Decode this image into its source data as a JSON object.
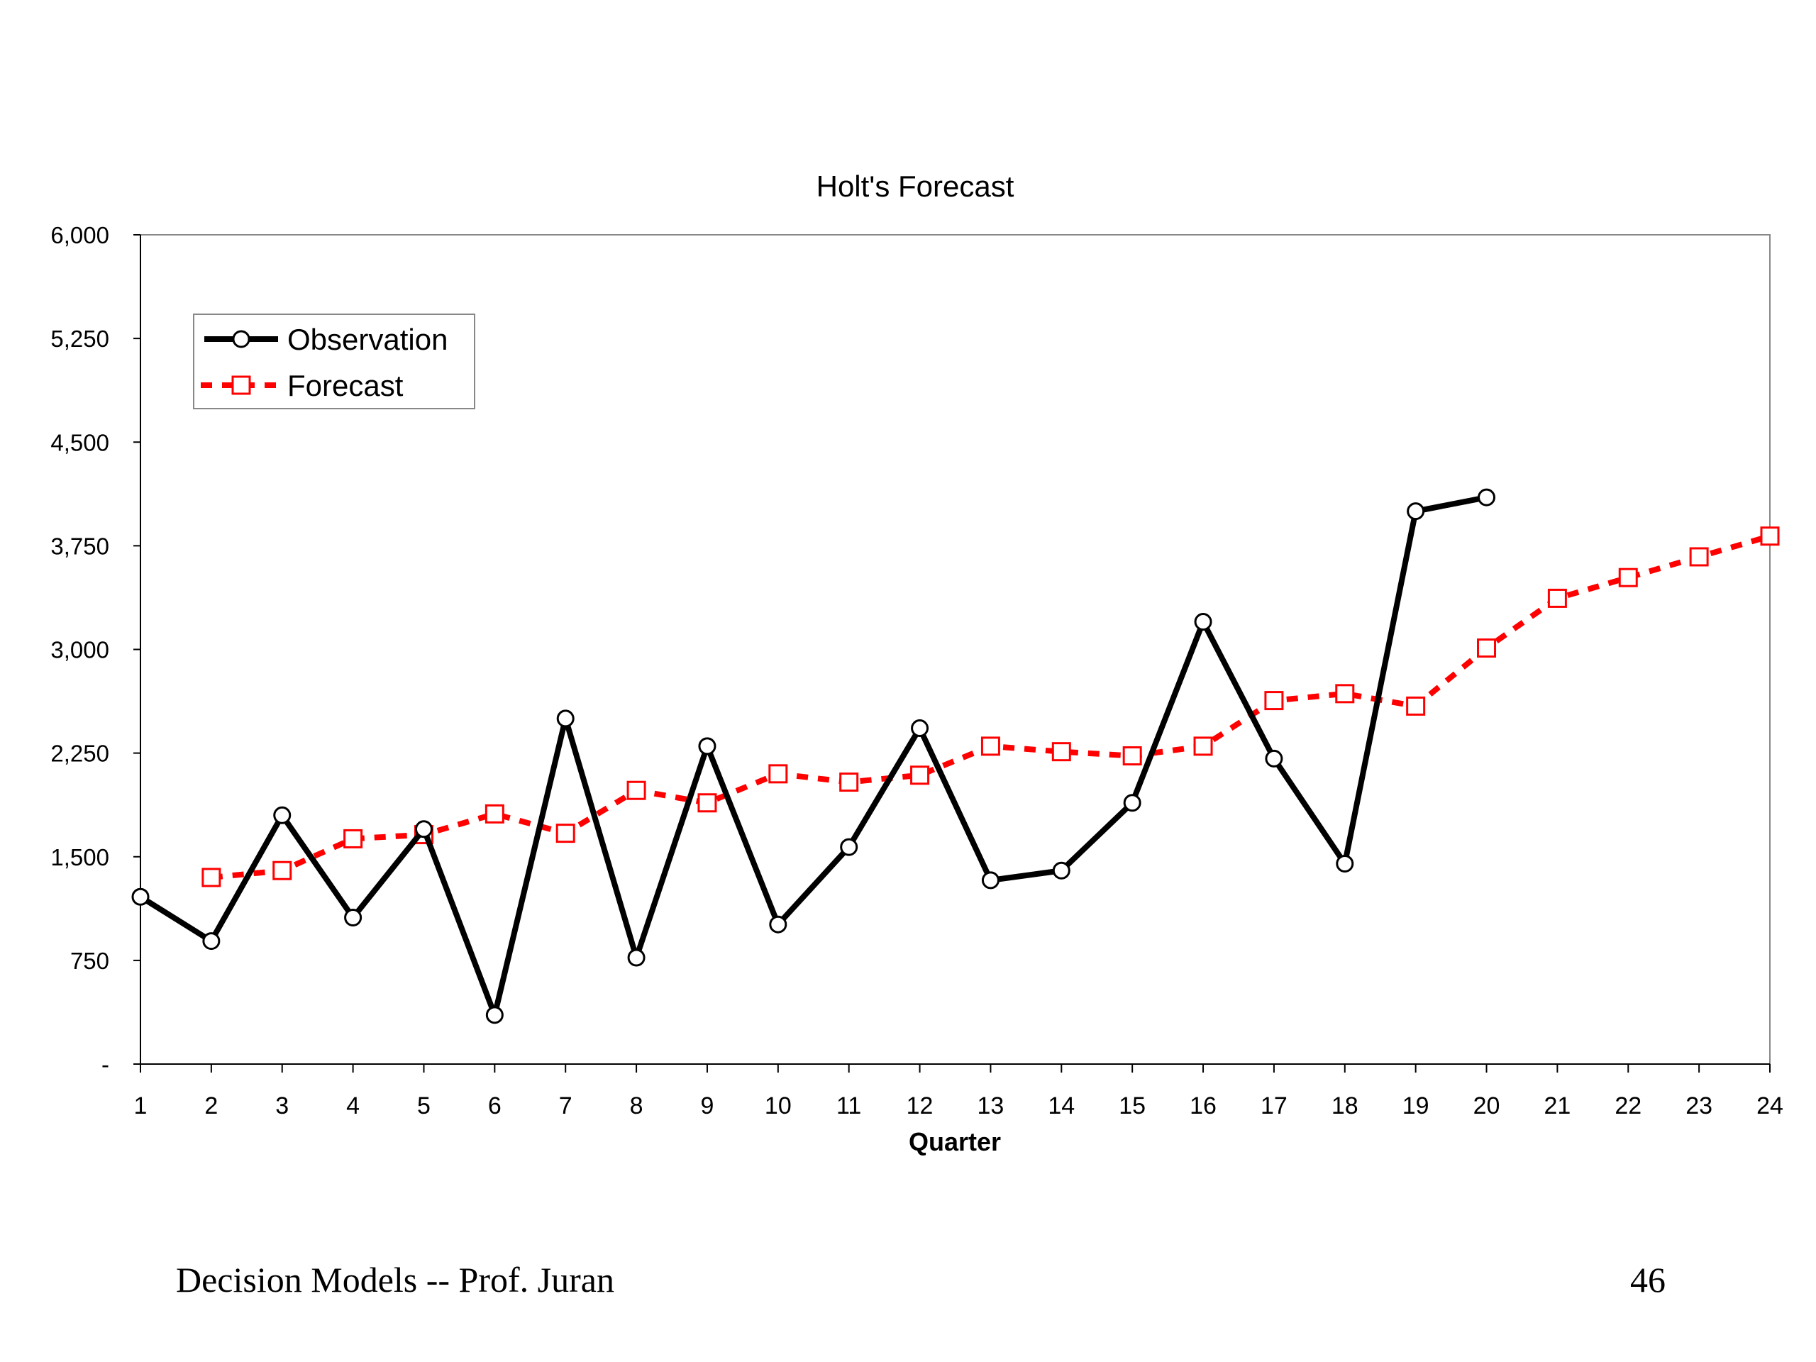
{
  "slide": {
    "footer_left": "Decision Models  --   Prof. Juran",
    "page_number": "46"
  },
  "chart_data": {
    "type": "line",
    "title": "Holt's Forecast",
    "xlabel": "Quarter",
    "ylabel": "",
    "x": [
      1,
      2,
      3,
      4,
      5,
      6,
      7,
      8,
      9,
      10,
      11,
      12,
      13,
      14,
      15,
      16,
      17,
      18,
      19,
      20,
      21,
      22,
      23,
      24
    ],
    "ylim": [
      0,
      6000
    ],
    "yticks": [
      0,
      750,
      1500,
      2250,
      3000,
      3750,
      4500,
      5250,
      6000
    ],
    "ytick_labels": [
      "-",
      "750",
      "1,500",
      "2,250",
      "3,000",
      "3,750",
      "4,500",
      "5,250",
      "6,000"
    ],
    "grid": false,
    "legend_position": "top-left",
    "series": [
      {
        "name": "Observation",
        "color": "#000000",
        "style": "solid",
        "marker": "circle",
        "values": [
          1210,
          890,
          1800,
          1060,
          1700,
          355,
          2500,
          770,
          2300,
          1010,
          1570,
          2430,
          1330,
          1400,
          1890,
          3200,
          2210,
          1450,
          4000,
          4100,
          null,
          null,
          null,
          null
        ]
      },
      {
        "name": "Forecast",
        "color": "#ff0000",
        "style": "dashed",
        "marker": "square",
        "values": [
          null,
          1350,
          1400,
          1630,
          1660,
          1810,
          1670,
          1980,
          1890,
          2100,
          2040,
          2090,
          2300,
          2260,
          2230,
          2300,
          2630,
          2680,
          2590,
          3010,
          3370,
          3520,
          3670,
          3820
        ]
      }
    ]
  }
}
